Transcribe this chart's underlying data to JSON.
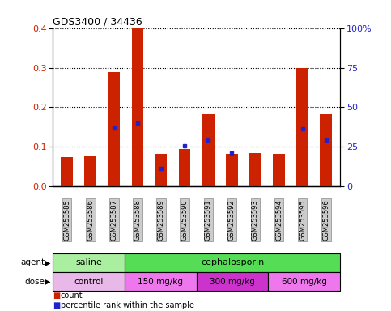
{
  "title": "GDS3400 / 34436",
  "samples": [
    "GSM253585",
    "GSM253586",
    "GSM253587",
    "GSM253588",
    "GSM253589",
    "GSM253590",
    "GSM253591",
    "GSM253592",
    "GSM253593",
    "GSM253594",
    "GSM253595",
    "GSM253596"
  ],
  "red_values": [
    0.075,
    0.078,
    0.288,
    0.4,
    0.082,
    0.095,
    0.182,
    0.082,
    0.085,
    0.082,
    0.298,
    0.183
  ],
  "blue_values": [
    0.002,
    0.002,
    0.148,
    0.16,
    0.045,
    0.103,
    0.118,
    0.085,
    0.003,
    0.003,
    0.145,
    0.118
  ],
  "blue_show": [
    false,
    false,
    true,
    true,
    true,
    true,
    true,
    true,
    false,
    false,
    true,
    true
  ],
  "ylim_left": [
    0,
    0.4
  ],
  "ylim_right": [
    0,
    100
  ],
  "yticks_left": [
    0,
    0.1,
    0.2,
    0.3,
    0.4
  ],
  "yticks_right": [
    0,
    25,
    50,
    75,
    100
  ],
  "ytick_labels_right": [
    "0",
    "25",
    "50",
    "75",
    "100%"
  ],
  "red_color": "#cc2200",
  "blue_color": "#2222cc",
  "bar_width": 0.5,
  "agent_saline_color": "#aaeea0",
  "agent_ceph_color": "#55dd55",
  "dose_control_color": "#e8b8e8",
  "dose_150_color": "#ee77ee",
  "dose_300_color": "#cc33cc",
  "dose_600_color": "#ee77ee",
  "legend_count_label": "count",
  "legend_pct_label": "percentile rank within the sample",
  "agent_label": "agent",
  "dose_label": "dose",
  "tick_label_color_left": "#cc2200",
  "tick_label_color_right": "#2222cc",
  "xticklabel_bg": "#cccccc"
}
